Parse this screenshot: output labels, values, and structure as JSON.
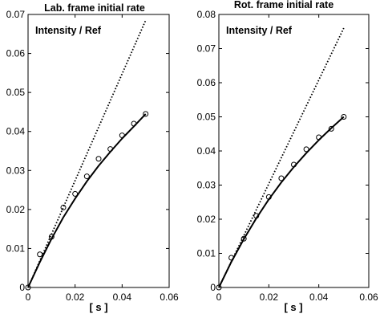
{
  "chart_data": [
    {
      "type": "line",
      "title": "Lab. frame initial rate",
      "annotation": "Intensity / Ref",
      "xlabel": "[ s ]",
      "ylabel": "",
      "xlim": [
        0,
        0.06
      ],
      "ylim": [
        0,
        0.07
      ],
      "xticks": [
        0,
        0.02,
        0.04,
        0.06
      ],
      "xtick_labels": [
        "0",
        "0.02",
        "0.04",
        "0.06"
      ],
      "yticks": [
        0,
        0.01,
        0.02,
        0.03,
        0.04,
        0.05,
        0.06,
        0.07
      ],
      "ytick_labels": [
        "0",
        "0.01",
        "0.02",
        "0.03",
        "0.04",
        "0.05",
        "0.06",
        "0.07"
      ],
      "grid": false,
      "series": [
        {
          "style": "markers",
          "x": [
            0,
            0.005,
            0.01,
            0.015,
            0.02,
            0.025,
            0.03,
            0.035,
            0.04,
            0.045,
            0.05
          ],
          "values": [
            0,
            0.0085,
            0.013,
            0.0205,
            0.024,
            0.0285,
            0.033,
            0.0355,
            0.039,
            0.042,
            0.0445
          ]
        },
        {
          "style": "solid",
          "x": [
            0,
            0.005,
            0.01,
            0.015,
            0.02,
            0.025,
            0.03,
            0.035,
            0.04,
            0.045,
            0.05
          ],
          "values": [
            0,
            0.0065,
            0.0125,
            0.018,
            0.0228,
            0.0272,
            0.0312,
            0.0348,
            0.0382,
            0.0413,
            0.0445
          ]
        },
        {
          "style": "dotted",
          "x": [
            0,
            0.05
          ],
          "values": [
            0,
            0.0685
          ]
        }
      ]
    },
    {
      "type": "line",
      "title": "Rot. frame initial rate",
      "annotation": "Intensity / Ref",
      "xlabel": "[ s ]",
      "ylabel": "",
      "xlim": [
        0,
        0.06
      ],
      "ylim": [
        0,
        0.08
      ],
      "xticks": [
        0,
        0.02,
        0.04,
        0.06
      ],
      "xtick_labels": [
        "0",
        "0.02",
        "0.04",
        "0.06"
      ],
      "yticks": [
        0,
        0.01,
        0.02,
        0.03,
        0.04,
        0.05,
        0.06,
        0.07,
        0.08
      ],
      "ytick_labels": [
        "0",
        "0.01",
        "0.02",
        "0.03",
        "0.04",
        "0.05",
        "0.06",
        "0.07",
        "0.08"
      ],
      "grid": false,
      "series": [
        {
          "style": "markers",
          "x": [
            0,
            0.005,
            0.01,
            0.015,
            0.02,
            0.025,
            0.03,
            0.035,
            0.04,
            0.045,
            0.05
          ],
          "values": [
            0,
            0.0087,
            0.0143,
            0.021,
            0.0265,
            0.032,
            0.036,
            0.0405,
            0.044,
            0.0465,
            0.05
          ]
        },
        {
          "style": "solid",
          "x": [
            0,
            0.005,
            0.01,
            0.015,
            0.02,
            0.025,
            0.03,
            0.035,
            0.04,
            0.045,
            0.05
          ],
          "values": [
            0,
            0.0075,
            0.0142,
            0.0203,
            0.0258,
            0.0308,
            0.0353,
            0.0394,
            0.0432,
            0.0467,
            0.05
          ]
        },
        {
          "style": "dotted",
          "x": [
            0,
            0.05
          ],
          "values": [
            0,
            0.076
          ]
        }
      ]
    }
  ]
}
